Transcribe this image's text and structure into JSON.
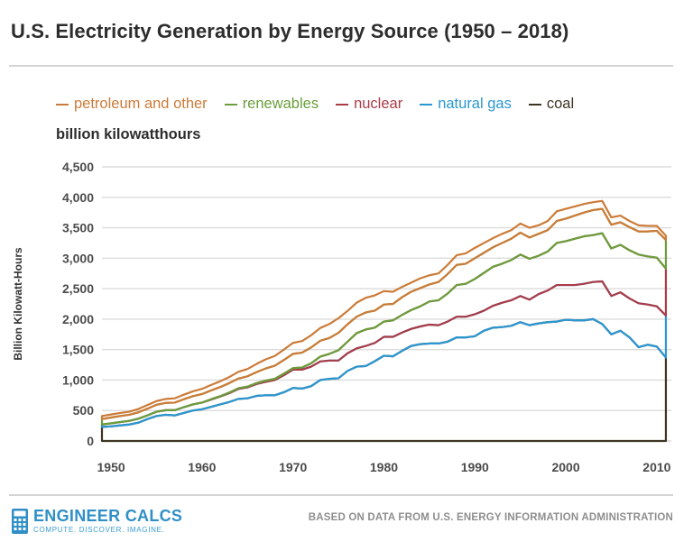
{
  "title": "U.S. Electricity Generation by Energy Source (1950 – 2018)",
  "unit_label": "billion kilowatthours",
  "branding": {
    "name": "ENGINEER CALCS",
    "tagline": "COMPUTE. DISCOVER. IMAGINE.",
    "accent_color": "#2f8fc6"
  },
  "source_note": "BASED ON DATA FROM U.S. ENERGY INFORMATION ADMINISTRATION",
  "chart_data": {
    "type": "area",
    "stacked": true,
    "title": "U.S. Electricity Generation by Energy Source (1950 – 2018)",
    "xlabel": "",
    "ylabel": "Billion Kilowatt-Hours",
    "xlim": [
      1949,
      2011.6
    ],
    "ylim": [
      0,
      4500
    ],
    "xticks": [
      1950,
      1960,
      1970,
      1980,
      1990,
      2000,
      2010
    ],
    "yticks": [
      0,
      500,
      1000,
      1500,
      2000,
      2500,
      3000,
      3500,
      4000,
      4500
    ],
    "ytick_labels": [
      "0",
      "500",
      "1,000",
      "1,500",
      "2,000",
      "2,500",
      "3,000",
      "3,500",
      "4,000",
      "4,500"
    ],
    "grid": true,
    "legend_position": "top",
    "x": [
      1949,
      1950,
      1951,
      1952,
      1953,
      1954,
      1955,
      1956,
      1957,
      1958,
      1959,
      1960,
      1961,
      1962,
      1963,
      1964,
      1965,
      1966,
      1967,
      1968,
      1969,
      1970,
      1971,
      1972,
      1973,
      1974,
      1975,
      1976,
      1977,
      1978,
      1979,
      1980,
      1981,
      1982,
      1983,
      1984,
      1985,
      1986,
      1987,
      1988,
      1989,
      1990,
      1991,
      1992,
      1993,
      1994,
      1995,
      1996,
      1997,
      1998,
      1999,
      2000,
      2001,
      2002,
      2003,
      2004,
      2005,
      2006,
      2007,
      2008,
      2009,
      2010,
      2011
    ],
    "series": [
      {
        "name": "coal",
        "color": "#3d3423",
        "values": [
          230,
          240,
          255,
          270,
          300,
          360,
          410,
          430,
          420,
          460,
          500,
          520,
          560,
          600,
          640,
          690,
          700,
          740,
          750,
          750,
          800,
          870,
          860,
          900,
          1000,
          1020,
          1030,
          1150,
          1220,
          1230,
          1310,
          1400,
          1390,
          1480,
          1560,
          1590,
          1600,
          1600,
          1630,
          1700,
          1700,
          1720,
          1810,
          1860,
          1870,
          1890,
          1950,
          1900,
          1930,
          1950,
          1960,
          1990,
          1980,
          1980,
          2000,
          1920,
          1750,
          1810,
          1700,
          1540,
          1580,
          1550,
          1370
        ]
      },
      {
        "name": "natural gas",
        "color": "#2b97d2",
        "values": [
          40,
          50,
          55,
          60,
          65,
          60,
          70,
          75,
          85,
          95,
          100,
          110,
          120,
          130,
          145,
          165,
          180,
          195,
          220,
          250,
          280,
          300,
          310,
          320,
          305,
          300,
          290,
          290,
          300,
          330,
          300,
          310,
          320,
          300,
          280,
          290,
          310,
          300,
          330,
          340,
          340,
          360,
          330,
          360,
          400,
          420,
          430,
          420,
          480,
          520,
          600,
          570,
          580,
          600,
          610,
          700,
          630,
          630,
          640,
          720,
          660,
          660,
          690
        ]
      },
      {
        "name": "nuclear",
        "color": "#ab3b47",
        "values": [
          0,
          0,
          0,
          0,
          0,
          0,
          0,
          0,
          0,
          0,
          0,
          0,
          5,
          5,
          10,
          10,
          12,
          15,
          20,
          20,
          25,
          25,
          35,
          55,
          80,
          110,
          170,
          190,
          250,
          270,
          250,
          250,
          270,
          290,
          310,
          330,
          380,
          410,
          460,
          520,
          540,
          580,
          620,
          640,
          640,
          660,
          680,
          670,
          630,
          640,
          690,
          720,
          760,
          780,
          770,
          790,
          780,
          780,
          790,
          800,
          790,
          800,
          770
        ]
      },
      {
        "name": "renewables",
        "color": "#6a9e3c",
        "values": [
          90,
          95,
          100,
          100,
          105,
          110,
          115,
          120,
          125,
          130,
          135,
          140,
          145,
          150,
          155,
          160,
          170,
          180,
          200,
          215,
          225,
          235,
          245,
          260,
          260,
          260,
          285,
          285,
          270,
          280,
          280,
          280,
          270,
          290,
          300,
          300,
          280,
          300,
          320,
          330,
          330,
          340,
          330,
          320,
          340,
          350,
          360,
          350,
          360,
          350,
          360,
          370,
          380,
          390,
          410,
          400,
          390,
          370,
          380,
          380,
          410,
          440,
          470
        ]
      },
      {
        "name": "petroleum and other",
        "color": "#cc7b38",
        "values": [
          50,
          50,
          50,
          50,
          55,
          60,
          60,
          65,
          70,
          75,
          80,
          85,
          90,
          95,
          100,
          110,
          120,
          135,
          150,
          160,
          170,
          180,
          190,
          200,
          210,
          230,
          240,
          220,
          230,
          240,
          250,
          220,
          200,
          170,
          150,
          160,
          150,
          140,
          150,
          160,
          170,
          170,
          160,
          150,
          150,
          140,
          150,
          160,
          140,
          150,
          160,
          160,
          150,
          140,
          130,
          130,
          120,
          110,
          100,
          100,
          90,
          80,
          70
        ]
      }
    ]
  }
}
